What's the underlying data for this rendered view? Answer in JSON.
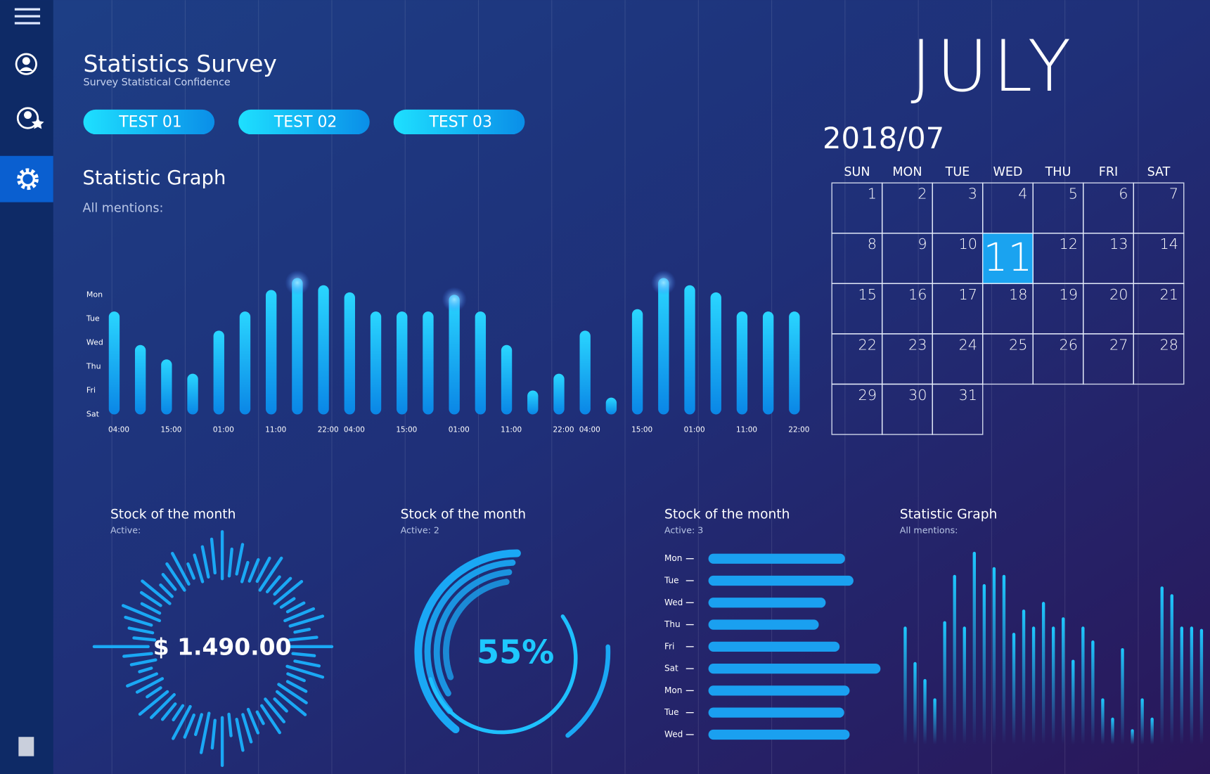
{
  "header": {
    "title": "Statistics Survey",
    "subtitle": "Survey Statistical Confidence"
  },
  "buttons": [
    "TEST 01",
    "TEST 02",
    "TEST 03"
  ],
  "calendar": {
    "month": "JULY",
    "label": "2018/07",
    "weekdays": [
      "SUN",
      "MON",
      "TUE",
      "WED",
      "THU",
      "FRI",
      "SAT"
    ],
    "days": [
      1,
      2,
      3,
      4,
      5,
      6,
      7,
      8,
      9,
      10,
      11,
      12,
      13,
      14,
      15,
      16,
      17,
      18,
      19,
      20,
      21,
      22,
      23,
      24,
      25,
      26,
      27,
      28,
      29,
      30,
      31
    ],
    "selected_day": 11
  },
  "chart_data": [
    {
      "type": "bar",
      "title": "Statistic Graph",
      "subtitle": "All mentions:",
      "categories": [
        "04:00",
        null,
        "15:00",
        null,
        "01:00",
        null,
        "11:00",
        null,
        "22:00",
        "04:00",
        null,
        "15:00",
        null,
        "01:00",
        null,
        "11:00",
        null,
        "22:00",
        "04:00",
        null,
        "15:00",
        null,
        "01:00",
        null,
        "11:00",
        null,
        "22:00"
      ],
      "values": [
        4.3,
        2.9,
        2.3,
        1.7,
        3.5,
        4.3,
        5.2,
        5.7,
        5.4,
        5.1,
        4.3,
        4.3,
        4.3,
        5.0,
        4.3,
        2.9,
        1.0,
        1.7,
        3.5,
        0.7,
        4.4,
        5.7,
        5.4,
        5.1,
        4.3,
        4.3,
        4.3
      ],
      "ylim": [
        0,
        6
      ],
      "yticks": [
        {
          "value": 5,
          "label": "Mon"
        },
        {
          "value": 4,
          "label": "Tue"
        },
        {
          "value": 3,
          "label": "Wed"
        },
        {
          "value": 2,
          "label": "Thu"
        },
        {
          "value": 1,
          "label": "Fri"
        },
        {
          "value": 0,
          "label": "Sat"
        }
      ],
      "color": "#1ab8ff"
    },
    {
      "type": "radial",
      "title": "Stock of the month",
      "subtitle": "Active:",
      "label": "$ 1.490.00",
      "color": "#1aa8f5"
    },
    {
      "type": "donut",
      "title": "Stock of the month",
      "subtitle": "Active: 2",
      "values": [
        55
      ],
      "value_labels": [
        "55%"
      ],
      "color": "#1aa8f5"
    },
    {
      "type": "hbar",
      "title": "Stock of the month",
      "subtitle": "Active: 3",
      "categories": [
        "Mon",
        "Tue",
        "Wed",
        "Thu",
        "Fri",
        "Sat",
        "Mon",
        "Tue",
        "Wed"
      ],
      "values": [
        177,
        188,
        152,
        143,
        170,
        223,
        183,
        176,
        183
      ],
      "color": "#1aa0f0"
    },
    {
      "type": "spikes",
      "title": "Statistic Graph",
      "subtitle": "All mentions:",
      "values": [
        153,
        107,
        85,
        60,
        160,
        220,
        153,
        250,
        208,
        230,
        220,
        145,
        175,
        153,
        185,
        153,
        165,
        110,
        153,
        135,
        60,
        35,
        125,
        20,
        60,
        35,
        205,
        195,
        153,
        153,
        150
      ],
      "color": "#1ec8ff"
    }
  ]
}
